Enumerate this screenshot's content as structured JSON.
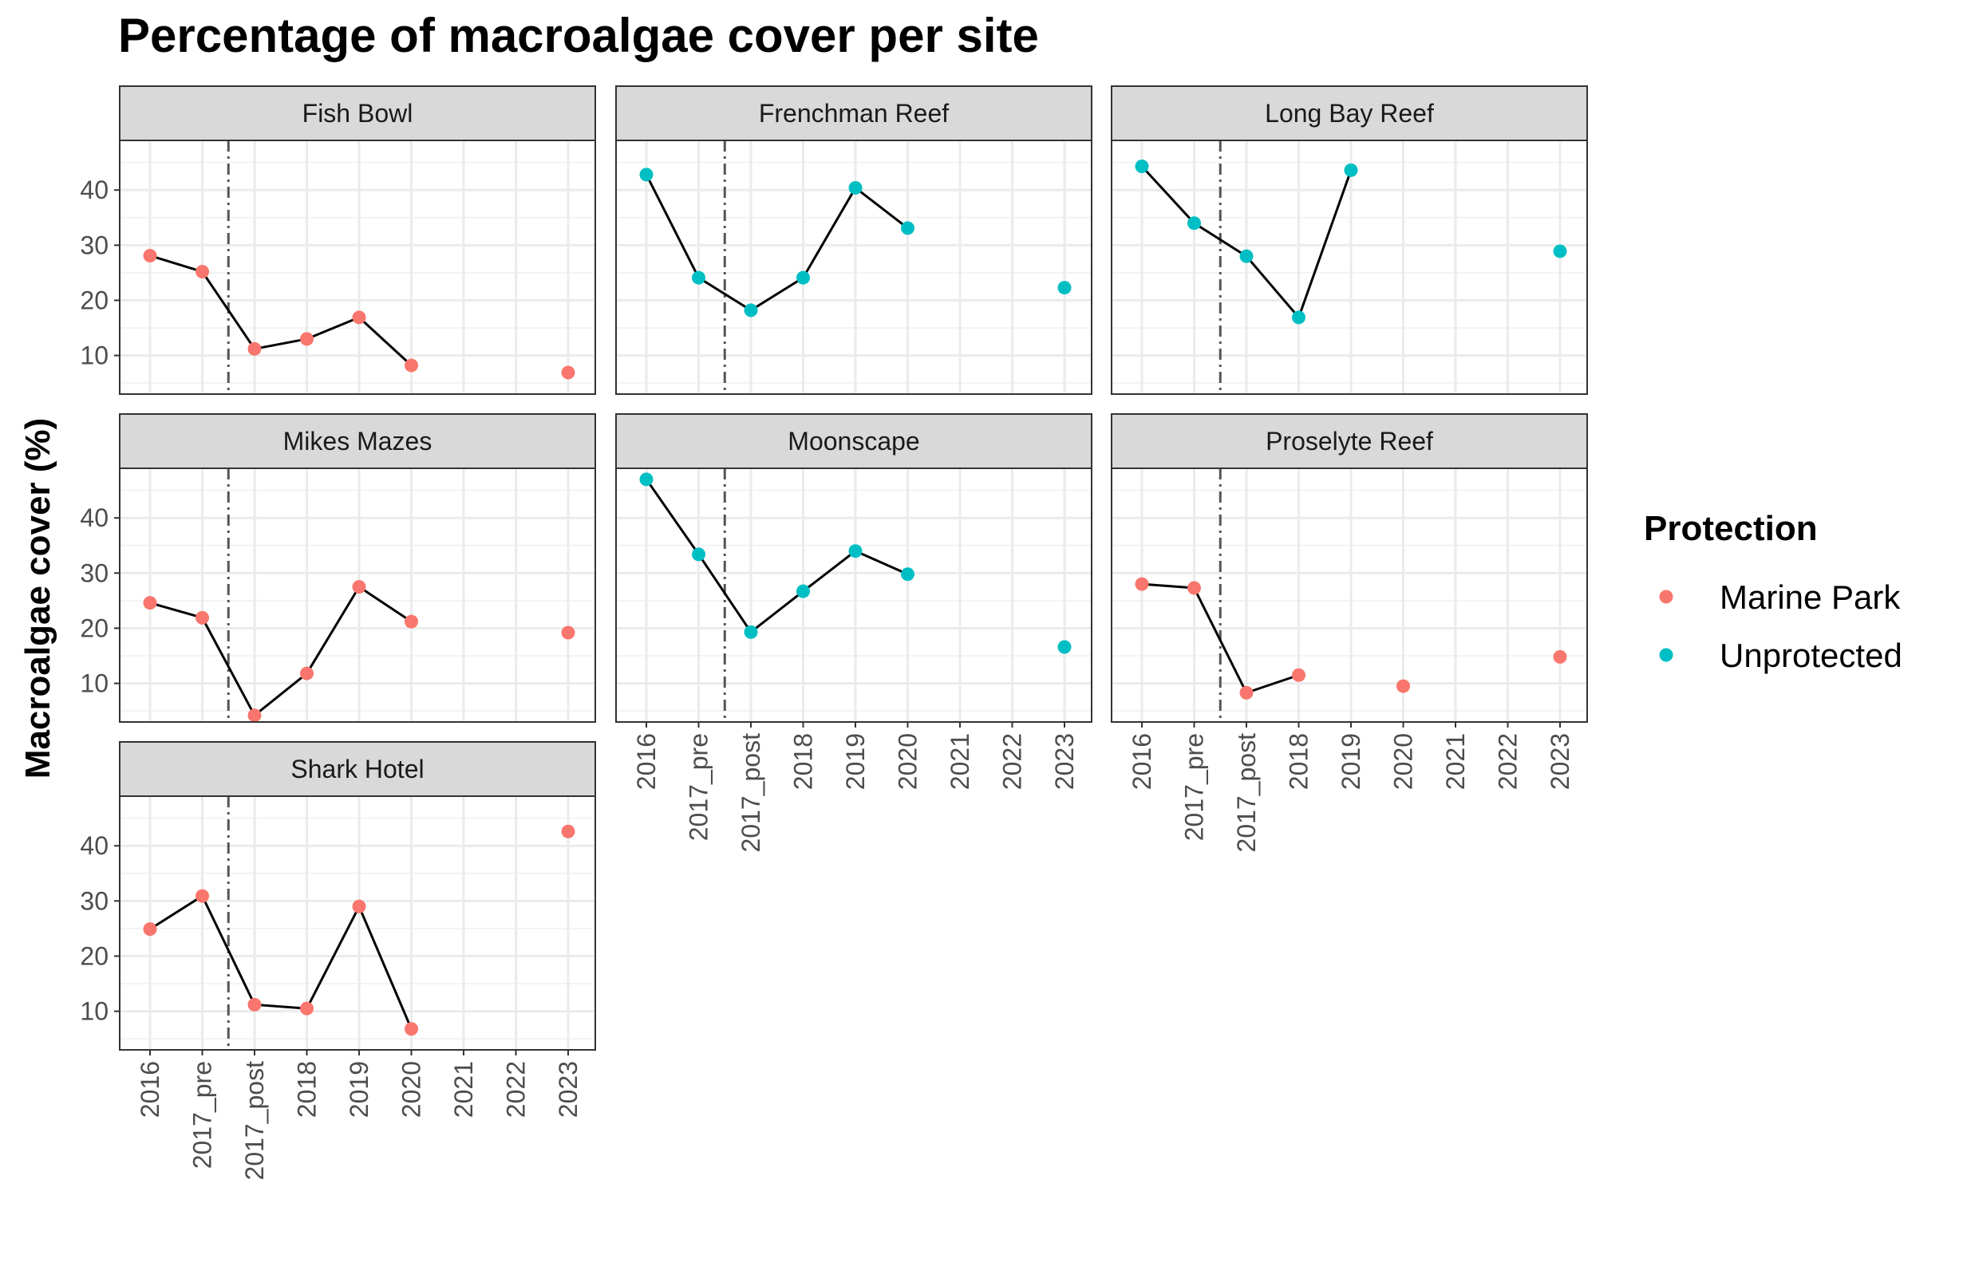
{
  "chart_data": {
    "type": "line",
    "title": "Percentage of macroalgae cover per site",
    "xlabel": "",
    "ylabel": "Macroalgae cover (%)",
    "ylim": [
      3,
      49
    ],
    "yticks": [
      10,
      20,
      30,
      40
    ],
    "categories": [
      "2016",
      "2017_pre",
      "2017_post",
      "2018",
      "2019",
      "2020",
      "2021",
      "2022",
      "2023"
    ],
    "vline": {
      "between": [
        "2017_pre",
        "2017_post"
      ],
      "style": "dashdot"
    },
    "legend": {
      "title": "Protection",
      "position": "right",
      "entries": [
        {
          "label": "Marine Park",
          "color": "#F8766D"
        },
        {
          "label": "Unprotected",
          "color": "#00BFC4"
        }
      ]
    },
    "panels": [
      {
        "name": "Fish Bowl",
        "protection": "Marine Park",
        "values": [
          28.1,
          25.2,
          11.2,
          13.0,
          16.9,
          8.2,
          null,
          null,
          6.9
        ]
      },
      {
        "name": "Frenchman Reef",
        "protection": "Unprotected",
        "values": [
          42.8,
          24.1,
          18.2,
          24.1,
          40.4,
          33.1,
          null,
          null,
          22.3
        ]
      },
      {
        "name": "Long Bay Reef",
        "protection": "Unprotected",
        "values": [
          44.3,
          34.0,
          28.0,
          16.9,
          43.6,
          null,
          null,
          null,
          28.9
        ]
      },
      {
        "name": "Mikes Mazes",
        "protection": "Marine Park",
        "values": [
          24.6,
          21.9,
          4.2,
          11.8,
          27.5,
          21.2,
          null,
          null,
          19.2
        ]
      },
      {
        "name": "Moonscape",
        "protection": "Unprotected",
        "values": [
          47.0,
          33.4,
          19.3,
          26.7,
          34.0,
          29.8,
          null,
          null,
          16.6
        ]
      },
      {
        "name": "Proselyte Reef",
        "protection": "Marine Park",
        "values": [
          28.0,
          27.3,
          8.3,
          11.5,
          null,
          9.5,
          null,
          null,
          14.8
        ]
      },
      {
        "name": "Shark Hotel",
        "protection": "Marine Park",
        "values": [
          24.9,
          30.9,
          11.2,
          10.5,
          29.0,
          6.8,
          null,
          null,
          42.6
        ]
      }
    ]
  }
}
